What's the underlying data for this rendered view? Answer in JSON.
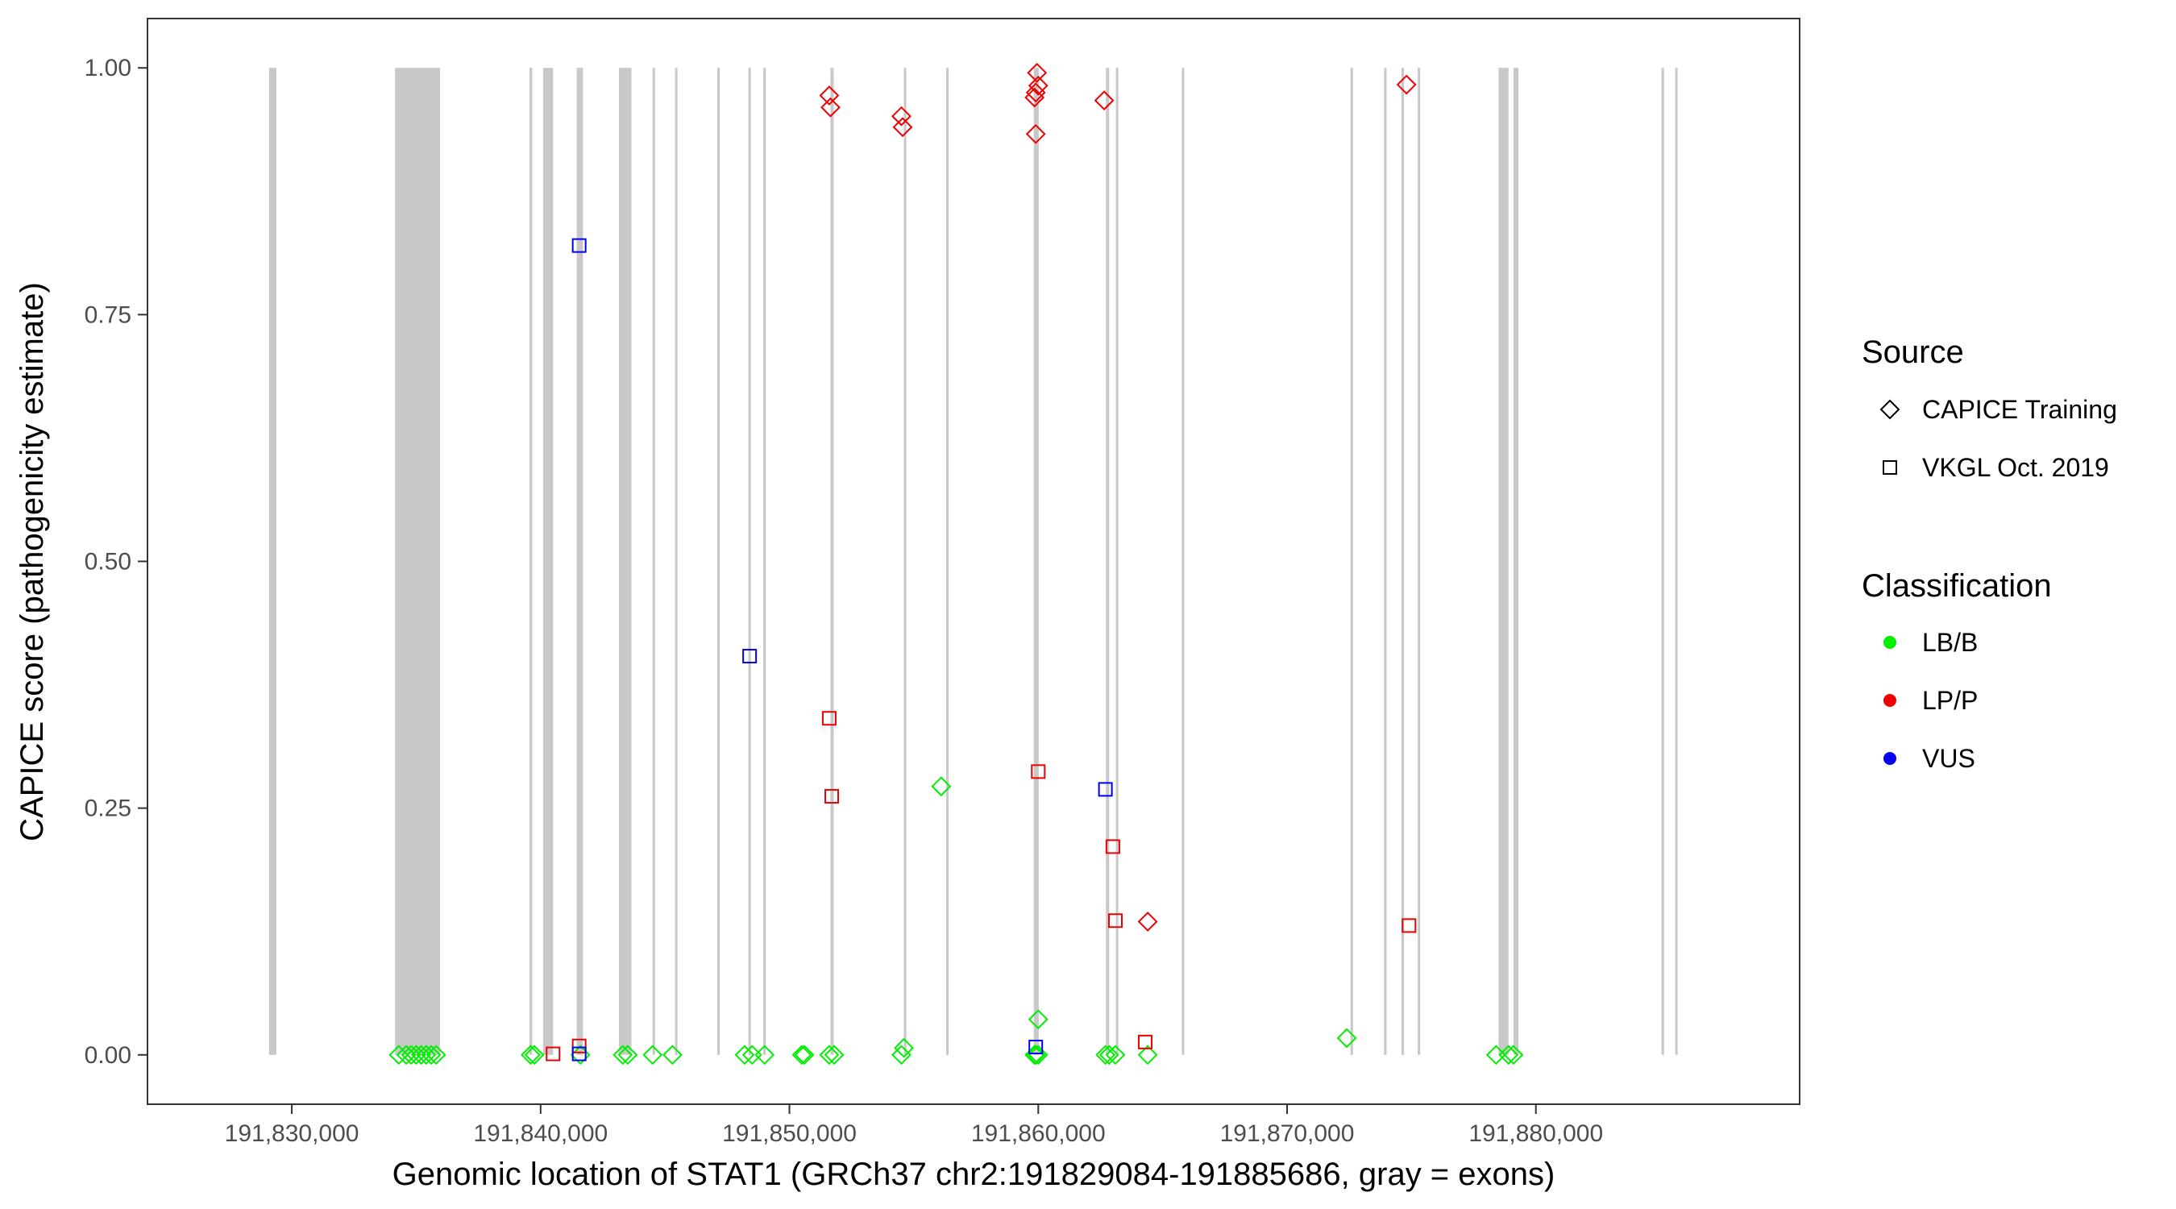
{
  "chart_data": {
    "type": "scatter",
    "title": "",
    "xlabel": "Genomic location of STAT1 (GRCh37 chr2:191829084-191885686, gray = exons)",
    "ylabel": "CAPICE score (pathogenicity estimate)",
    "xlim": [
      191824200,
      191890600
    ],
    "ylim": [
      -0.05,
      1.05
    ],
    "x_ticks": [
      191830000,
      191840000,
      191850000,
      191860000,
      191870000,
      191880000
    ],
    "x_tick_labels": [
      "191,830,000",
      "191,840,000",
      "191,850,000",
      "191,860,000",
      "191,870,000",
      "191,880,000"
    ],
    "y_ticks": [
      0,
      0.25,
      0.5,
      0.75,
      1.0
    ],
    "y_tick_labels": [
      "0.00",
      "0.25",
      "0.50",
      "0.75",
      "1.00"
    ],
    "grid": false,
    "legend_position": "right",
    "exons": [
      [
        191829085,
        191829380
      ],
      [
        191834150,
        191835960
      ],
      [
        191839550,
        191839660
      ],
      [
        191840100,
        191840500
      ],
      [
        191841450,
        191841700
      ],
      [
        191843150,
        191843650
      ],
      [
        191844500,
        191844600
      ],
      [
        191845400,
        191845500
      ],
      [
        191847100,
        191847200
      ],
      [
        191848350,
        191848450
      ],
      [
        191848950,
        191849050
      ],
      [
        191851650,
        191851780
      ],
      [
        191854600,
        191854680
      ],
      [
        191856300,
        191856380
      ],
      [
        191859820,
        191860020
      ],
      [
        191862720,
        191862850
      ],
      [
        191863120,
        191863220
      ],
      [
        191865770,
        191865850
      ],
      [
        191872550,
        191872650
      ],
      [
        191873900,
        191874000
      ],
      [
        191874600,
        191874700
      ],
      [
        191875250,
        191875350
      ],
      [
        191878500,
        191878900
      ],
      [
        191879100,
        191879300
      ],
      [
        191885050,
        191885150
      ],
      [
        191885600,
        191885686
      ]
    ],
    "legend": {
      "source_title": "Source",
      "source_items": [
        {
          "label": "CAPICE Training",
          "shape": "diamond"
        },
        {
          "label": "VKGL Oct. 2019",
          "shape": "square"
        }
      ],
      "class_title": "Classification",
      "class_items": [
        {
          "label": "LB/B",
          "color": "#00ee00"
        },
        {
          "label": "LP/P",
          "color": "#ee0000"
        },
        {
          "label": "VUS",
          "color": "#0000ee"
        }
      ]
    },
    "colors": {
      "LB/B": "#00ee00",
      "LP/P": "#ee0000",
      "VUS": "#0000ee",
      "exon": "#c8c8c8"
    },
    "series": [
      {
        "name": "CAPICE Training / LB/B",
        "shape": "diamond",
        "color": "#00ee00",
        "points": [
          [
            191834300,
            0
          ],
          [
            191834600,
            0
          ],
          [
            191834800,
            0
          ],
          [
            191835000,
            0
          ],
          [
            191835200,
            0
          ],
          [
            191835400,
            0
          ],
          [
            191835600,
            0
          ],
          [
            191835800,
            0
          ],
          [
            191839600,
            0
          ],
          [
            191839750,
            0
          ],
          [
            191841600,
            0
          ],
          [
            191843300,
            0
          ],
          [
            191843500,
            0
          ],
          [
            191844500,
            0
          ],
          [
            191845300,
            0
          ],
          [
            191848200,
            0
          ],
          [
            191848500,
            0
          ],
          [
            191849000,
            0
          ],
          [
            191850500,
            0
          ],
          [
            191850600,
            0
          ],
          [
            191851600,
            0
          ],
          [
            191851800,
            0
          ],
          [
            191854500,
            0
          ],
          [
            191854600,
            0.007
          ],
          [
            191856100,
            0.272
          ],
          [
            191859850,
            0
          ],
          [
            191859900,
            0
          ],
          [
            191860000,
            0
          ],
          [
            191860000,
            0.036
          ],
          [
            191862700,
            0
          ],
          [
            191862850,
            0
          ],
          [
            191863100,
            0
          ],
          [
            191864400,
            0
          ],
          [
            191872400,
            0.017
          ],
          [
            191878400,
            0
          ],
          [
            191878900,
            0
          ],
          [
            191879100,
            0
          ]
        ]
      },
      {
        "name": "CAPICE Training / LP/P",
        "shape": "diamond",
        "color": "#ee0000",
        "points": [
          [
            191851600,
            0.972
          ],
          [
            191851650,
            0.96
          ],
          [
            191854500,
            0.951
          ],
          [
            191854550,
            0.94
          ],
          [
            191859950,
            0.995
          ],
          [
            191860000,
            0.982
          ],
          [
            191859900,
            0.975
          ],
          [
            191859850,
            0.97
          ],
          [
            191859900,
            0.933
          ],
          [
            191862650,
            0.967
          ],
          [
            191864400,
            0.135
          ],
          [
            191874800,
            0.983
          ]
        ]
      },
      {
        "name": "VKGL Oct. 2019 / LP/P",
        "shape": "square",
        "color": "#ee0000",
        "points": [
          [
            191840500,
            0.001
          ],
          [
            191841550,
            0.009
          ],
          [
            191851600,
            0.341
          ],
          [
            191851700,
            0.262
          ],
          [
            191860000,
            0.287
          ],
          [
            191863000,
            0.211
          ],
          [
            191863100,
            0.136
          ],
          [
            191864300,
            0.013
          ],
          [
            191874900,
            0.131
          ]
        ]
      },
      {
        "name": "VKGL Oct. 2019 / VUS",
        "shape": "square",
        "color": "#0000ee",
        "points": [
          [
            191841550,
            0.82
          ],
          [
            191841550,
            0.001
          ],
          [
            191848400,
            0.404
          ],
          [
            191862700,
            0.269
          ],
          [
            191859900,
            0.008
          ]
        ]
      }
    ]
  }
}
